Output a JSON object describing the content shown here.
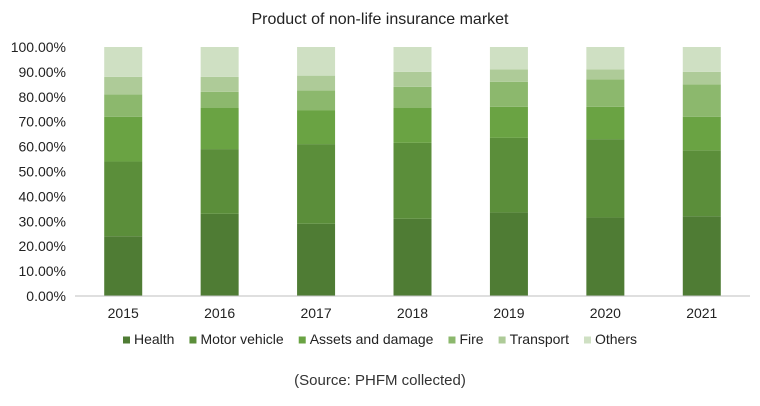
{
  "chart_data": {
    "type": "bar",
    "stacked": true,
    "title": "Product of non-life insurance market",
    "xlabel": "",
    "ylabel": "",
    "ylim": [
      0,
      1
    ],
    "y_tick_labels": [
      "0.00%",
      "10.00%",
      "20.00%",
      "30.00%",
      "40.00%",
      "50.00%",
      "60.00%",
      "70.00%",
      "80.00%",
      "90.00%",
      "100.00%"
    ],
    "categories": [
      "2015",
      "2016",
      "2017",
      "2018",
      "2019",
      "2020",
      "2021"
    ],
    "grid": false,
    "legend_position": "bottom",
    "series": [
      {
        "name": "Health",
        "color": "#4f7c34",
        "values": [
          0.24,
          0.33,
          0.29,
          0.31,
          0.335,
          0.315,
          0.32
        ]
      },
      {
        "name": "Motor vehicle",
        "color": "#5b8e3a",
        "values": [
          0.3,
          0.26,
          0.32,
          0.305,
          0.3,
          0.315,
          0.265
        ]
      },
      {
        "name": "Assets and damage",
        "color": "#6aa343",
        "values": [
          0.18,
          0.165,
          0.135,
          0.14,
          0.125,
          0.13,
          0.135
        ]
      },
      {
        "name": "Fire",
        "color": "#8cb86d",
        "values": [
          0.09,
          0.065,
          0.08,
          0.085,
          0.1,
          0.11,
          0.13
        ]
      },
      {
        "name": "Transport",
        "color": "#aecb98",
        "values": [
          0.07,
          0.06,
          0.06,
          0.06,
          0.05,
          0.04,
          0.05
        ]
      },
      {
        "name": "Others",
        "color": "#cfe0c3",
        "values": [
          0.12,
          0.12,
          0.115,
          0.1,
          0.09,
          0.09,
          0.1
        ]
      }
    ]
  },
  "caption": "(Source: PHFM collected)"
}
